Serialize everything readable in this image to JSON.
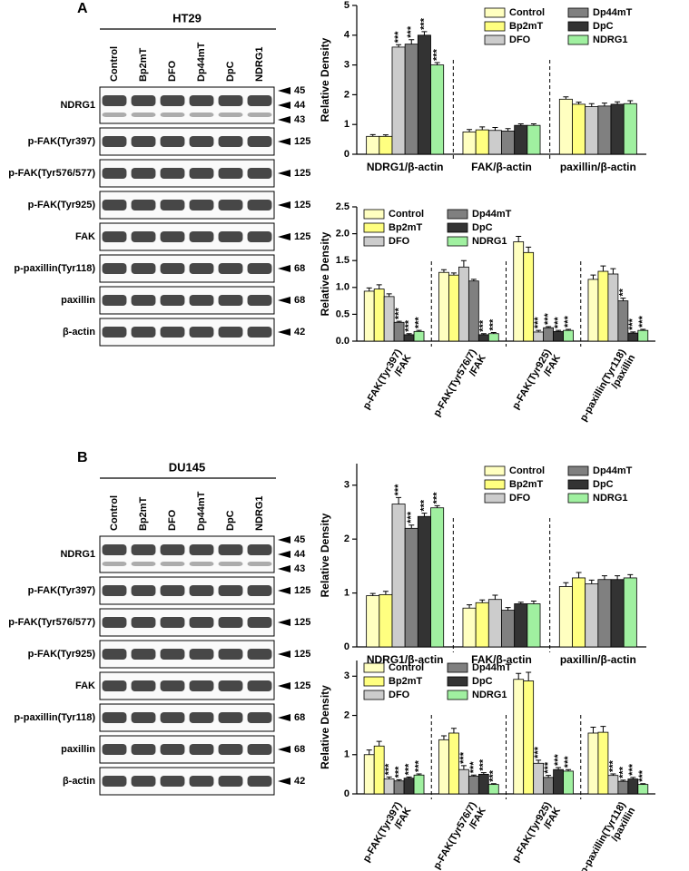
{
  "blots": [
    {
      "panel_label": "A",
      "cell_line": "HT29",
      "lanes": [
        "Control",
        "Bp2mT",
        "DFO",
        "Dp44mT",
        "DpC",
        "NDRG1"
      ],
      "rows": [
        {
          "protein": "NDRG1",
          "markers": [
            45,
            44,
            43
          ]
        },
        {
          "protein": "p-FAK(Tyr397)",
          "markers": [
            125
          ]
        },
        {
          "protein": "p-FAK(Tyr576/577)",
          "markers": [
            125
          ]
        },
        {
          "protein": "p-FAK(Tyr925)",
          "markers": [
            125
          ]
        },
        {
          "protein": "FAK",
          "markers": [
            125
          ]
        },
        {
          "protein": "p-paxillin(Tyr118)",
          "markers": [
            68
          ]
        },
        {
          "protein": "paxillin",
          "markers": [
            68
          ]
        },
        {
          "protein": "β-actin",
          "markers": [
            42
          ]
        }
      ]
    },
    {
      "panel_label": "B",
      "cell_line": "DU145",
      "lanes": [
        "Control",
        "Bp2mT",
        "DFO",
        "Dp44mT",
        "DpC",
        "NDRG1"
      ],
      "rows": [
        {
          "protein": "NDRG1",
          "markers": [
            45,
            44,
            43
          ]
        },
        {
          "protein": "p-FAK(Tyr397)",
          "markers": [
            125
          ]
        },
        {
          "protein": "p-FAK(Tyr576/577)",
          "markers": [
            125
          ]
        },
        {
          "protein": "p-FAK(Tyr925)",
          "markers": [
            125
          ]
        },
        {
          "protein": "FAK",
          "markers": [
            125
          ]
        },
        {
          "protein": "p-paxillin(Tyr118)",
          "markers": [
            68
          ]
        },
        {
          "protein": "paxillin",
          "markers": [
            68
          ]
        },
        {
          "protein": "β-actin",
          "markers": [
            42
          ]
        }
      ]
    }
  ],
  "chart_data": [
    {
      "type": "bar",
      "y_label": "Relative Density",
      "legend": "upper right",
      "dividers": true,
      "categories": [
        "NDRG1/β-actin",
        "FAK/β-actin",
        "paxillin/β-actin"
      ],
      "ylim": [
        0,
        5
      ],
      "yticks": [
        0,
        1,
        2,
        3,
        4,
        5
      ],
      "series": [
        {
          "name": "Control",
          "color": "#ffffc0",
          "values": [
            0.6,
            0.75,
            1.85
          ],
          "errors": [
            0.06,
            0.08,
            0.08
          ],
          "annotations": [
            null,
            null,
            null
          ]
        },
        {
          "name": "Bp2mT",
          "color": "#ffff80",
          "values": [
            0.6,
            0.82,
            1.68
          ],
          "errors": [
            0.05,
            0.1,
            0.07
          ],
          "annotations": [
            null,
            null,
            null
          ]
        },
        {
          "name": "DFO",
          "color": "#cccccc",
          "values": [
            3.6,
            0.8,
            1.6
          ],
          "errors": [
            0.08,
            0.1,
            0.1
          ],
          "annotations": [
            "***",
            null,
            null
          ]
        },
        {
          "name": "Dp44mT",
          "color": "#808080",
          "values": [
            3.7,
            0.78,
            1.62
          ],
          "errors": [
            0.15,
            0.08,
            0.1
          ],
          "annotations": [
            "***",
            null,
            null
          ]
        },
        {
          "name": "DpC",
          "color": "#333333",
          "values": [
            4.0,
            0.97,
            1.68
          ],
          "errors": [
            0.12,
            0.05,
            0.08
          ],
          "annotations": [
            "***",
            null,
            null
          ]
        },
        {
          "name": "NDRG1",
          "color": "#a0f0a0",
          "values": [
            3.0,
            0.97,
            1.7
          ],
          "errors": [
            0.08,
            0.05,
            0.1
          ],
          "annotations": [
            "***",
            null,
            null
          ]
        }
      ]
    },
    {
      "type": "bar",
      "y_label": "Relative Density",
      "legend": "upper left",
      "dividers": true,
      "categories": [
        [
          "p-FAK(Tyr397)",
          "/FAK"
        ],
        [
          "p-FAK(Tyr576/7)",
          "/FAK"
        ],
        [
          "p-FAK(Tyr925)",
          "/FAK"
        ],
        [
          "p-paxillin(Tyr118)",
          "/paxillin"
        ]
      ],
      "ylim": [
        0,
        2.5
      ],
      "yticks": [
        {
          "value": 0,
          "label": "0.0"
        },
        {
          "value": 0.5,
          "label": "0.5"
        },
        {
          "value": 1,
          "label": "1.0"
        },
        {
          "value": 1.5,
          "label": "1.5"
        },
        {
          "value": 2,
          "label": "2.0"
        },
        {
          "value": 2.5,
          "label": "2.5"
        }
      ],
      "series": [
        {
          "name": "Control",
          "color": "#ffffc0",
          "values": [
            0.93,
            1.28,
            1.85,
            1.15
          ],
          "errors": [
            0.06,
            0.05,
            0.1,
            0.08
          ],
          "annotations": [
            null,
            null,
            null,
            null
          ]
        },
        {
          "name": "Bp2mT",
          "color": "#ffff80",
          "values": [
            0.97,
            1.23,
            1.65,
            1.3
          ],
          "errors": [
            0.08,
            0.04,
            0.1,
            0.1
          ],
          "annotations": [
            null,
            null,
            null,
            null
          ]
        },
        {
          "name": "DFO",
          "color": "#cccccc",
          "values": [
            0.83,
            1.38,
            0.17,
            1.25
          ],
          "errors": [
            0.05,
            0.12,
            0.03,
            0.1
          ],
          "annotations": [
            null,
            null,
            "***",
            null
          ]
        },
        {
          "name": "Dp44mT",
          "color": "#808080",
          "values": [
            0.35,
            1.12,
            0.25,
            0.75
          ],
          "errors": [
            0.02,
            0.03,
            0.02,
            0.05
          ],
          "annotations": [
            "***",
            null,
            "***",
            "**"
          ]
        },
        {
          "name": "DpC",
          "color": "#333333",
          "values": [
            0.12,
            0.12,
            0.18,
            0.15
          ],
          "errors": [
            0.02,
            0.02,
            0.02,
            0.02
          ],
          "annotations": [
            "***",
            "***",
            "***",
            "***"
          ]
        },
        {
          "name": "NDRG1",
          "color": "#a0f0a0",
          "values": [
            0.18,
            0.14,
            0.2,
            0.2
          ],
          "errors": [
            0.02,
            0.02,
            0.02,
            0.02
          ],
          "annotations": [
            "***",
            "***",
            "***",
            "***"
          ]
        }
      ]
    },
    {
      "type": "bar",
      "y_label": "Relative Density",
      "legend": "upper right",
      "dividers": true,
      "categories": [
        "NDRG1/β-actin",
        "FAK/β-actin",
        "paxillin/β-actin"
      ],
      "ylim": [
        0,
        3.4
      ],
      "yticks": [
        0,
        1,
        2,
        3
      ],
      "series": [
        {
          "name": "Control",
          "color": "#ffffc0",
          "values": [
            0.95,
            0.72,
            1.12
          ],
          "errors": [
            0.04,
            0.06,
            0.07
          ],
          "annotations": [
            null,
            null,
            null
          ]
        },
        {
          "name": "Bp2mT",
          "color": "#ffff80",
          "values": [
            0.97,
            0.82,
            1.28
          ],
          "errors": [
            0.06,
            0.05,
            0.1
          ],
          "annotations": [
            null,
            null,
            null
          ]
        },
        {
          "name": "DFO",
          "color": "#cccccc",
          "values": [
            2.65,
            0.88,
            1.17
          ],
          "errors": [
            0.12,
            0.08,
            0.07
          ],
          "annotations": [
            "***",
            null,
            null
          ]
        },
        {
          "name": "Dp44mT",
          "color": "#808080",
          "values": [
            2.2,
            0.68,
            1.25
          ],
          "errors": [
            0.06,
            0.05,
            0.07
          ],
          "annotations": [
            "***",
            null,
            null
          ]
        },
        {
          "name": "DpC",
          "color": "#333333",
          "values": [
            2.42,
            0.8,
            1.25
          ],
          "errors": [
            0.06,
            0.03,
            0.07
          ],
          "annotations": [
            "***",
            null,
            null
          ]
        },
        {
          "name": "NDRG1",
          "color": "#a0f0a0",
          "values": [
            2.58,
            0.8,
            1.28
          ],
          "errors": [
            0.04,
            0.05,
            0.06
          ],
          "annotations": [
            "***",
            null,
            null
          ]
        }
      ]
    },
    {
      "type": "bar",
      "y_label": "Relative Density",
      "legend": "upper left",
      "dividers": true,
      "categories": [
        [
          "p-FAK(Tyr397)",
          "/FAK"
        ],
        [
          "p-FAK(Tyr576/7)",
          "/FAK"
        ],
        [
          "p-FAK(Tyr925)",
          "/FAK"
        ],
        [
          "p-paxillin(Tyr118)",
          "/paxillin"
        ]
      ],
      "ylim": [
        0,
        3.4
      ],
      "yticks": [
        0,
        1,
        2,
        3
      ],
      "series": [
        {
          "name": "Control",
          "color": "#ffffc0",
          "values": [
            1.0,
            1.38,
            2.92,
            1.55
          ],
          "errors": [
            0.12,
            0.1,
            0.15,
            0.15
          ],
          "annotations": [
            null,
            null,
            null,
            null
          ]
        },
        {
          "name": "Bp2mT",
          "color": "#ffff80",
          "values": [
            1.22,
            1.55,
            2.88,
            1.57
          ],
          "errors": [
            0.12,
            0.12,
            0.22,
            0.15
          ],
          "annotations": [
            null,
            null,
            null,
            null
          ]
        },
        {
          "name": "DFO",
          "color": "#cccccc",
          "values": [
            0.38,
            0.62,
            0.78,
            0.47
          ],
          "errors": [
            0.05,
            0.1,
            0.08,
            0.04
          ],
          "annotations": [
            "***",
            "***",
            "***",
            "***"
          ]
        },
        {
          "name": "Dp44mT",
          "color": "#808080",
          "values": [
            0.33,
            0.45,
            0.42,
            0.32
          ],
          "errors": [
            0.03,
            0.03,
            0.05,
            0.03
          ],
          "annotations": [
            "***",
            "***",
            "***",
            "***"
          ]
        },
        {
          "name": "DpC",
          "color": "#333333",
          "values": [
            0.4,
            0.5,
            0.62,
            0.38
          ],
          "errors": [
            0.03,
            0.04,
            0.05,
            0.04
          ],
          "annotations": [
            "***",
            "***",
            "***",
            "***"
          ]
        },
        {
          "name": "NDRG1",
          "color": "#a0f0a0",
          "values": [
            0.48,
            0.24,
            0.58,
            0.24
          ],
          "errors": [
            0.03,
            0.02,
            0.04,
            0.02
          ],
          "annotations": [
            "***",
            "***",
            "***",
            "***"
          ]
        }
      ]
    }
  ]
}
